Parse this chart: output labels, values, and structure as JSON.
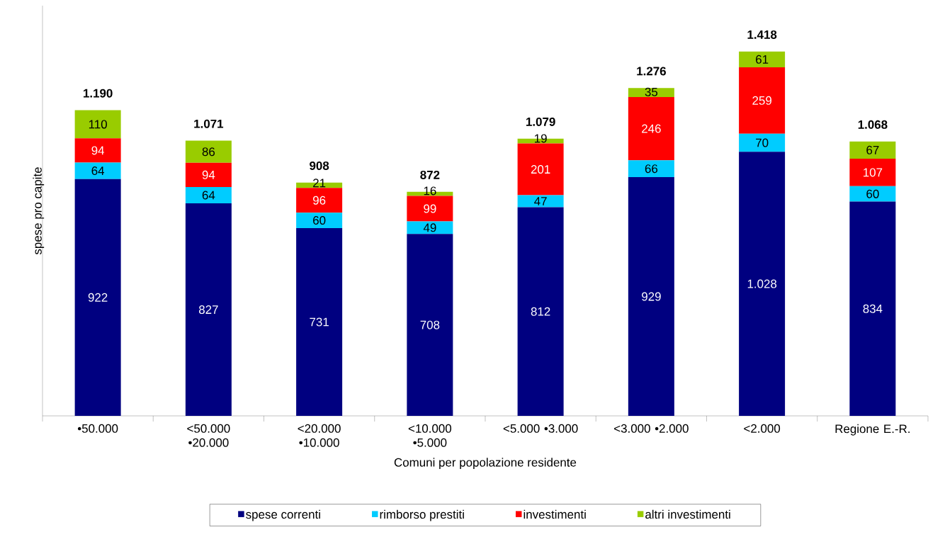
{
  "chart_data": {
    "type": "bar",
    "stacked": true,
    "xlabel": "Comuni per popolazione residente",
    "ylabel": "spese pro capite",
    "legend": "bottom",
    "categories": [
      "•50.000",
      "<50.000 •20.000",
      "<20.000 •10.000",
      "<10.000 •5.000",
      "<5.000 •3.000",
      "<3.000 •2.000",
      "<2.000",
      "Regione E.-R."
    ],
    "series": [
      {
        "name": "spese correnti",
        "color": "#000080",
        "values": [
          922,
          827,
          731,
          708,
          812,
          929,
          1028,
          834
        ],
        "value_labels": [
          "922",
          "827",
          "731",
          "708",
          "812",
          "929",
          "1.028",
          "834"
        ]
      },
      {
        "name": "rimborso prestiti",
        "color": "#00ccff",
        "values": [
          64,
          64,
          60,
          49,
          47,
          66,
          70,
          60
        ],
        "value_labels": [
          "64",
          "64",
          "60",
          "49",
          "47",
          "66",
          "70",
          "60"
        ]
      },
      {
        "name": "investimenti",
        "color": "#ff0000",
        "values": [
          94,
          94,
          96,
          99,
          201,
          246,
          259,
          107
        ],
        "value_labels": [
          "94",
          "94",
          "96",
          "99",
          "201",
          "246",
          "259",
          "107"
        ]
      },
      {
        "name": "altri investimenti",
        "color": "#99cc00",
        "values": [
          110,
          86,
          21,
          16,
          19,
          35,
          61,
          67
        ],
        "value_labels": [
          "110",
          "86",
          "21",
          "16",
          "19",
          "35",
          "61",
          "67"
        ]
      }
    ],
    "totals": [
      "1.190",
      "1.071",
      "908",
      "872",
      "1.079",
      "1.276",
      "1.418",
      "1.068"
    ]
  }
}
